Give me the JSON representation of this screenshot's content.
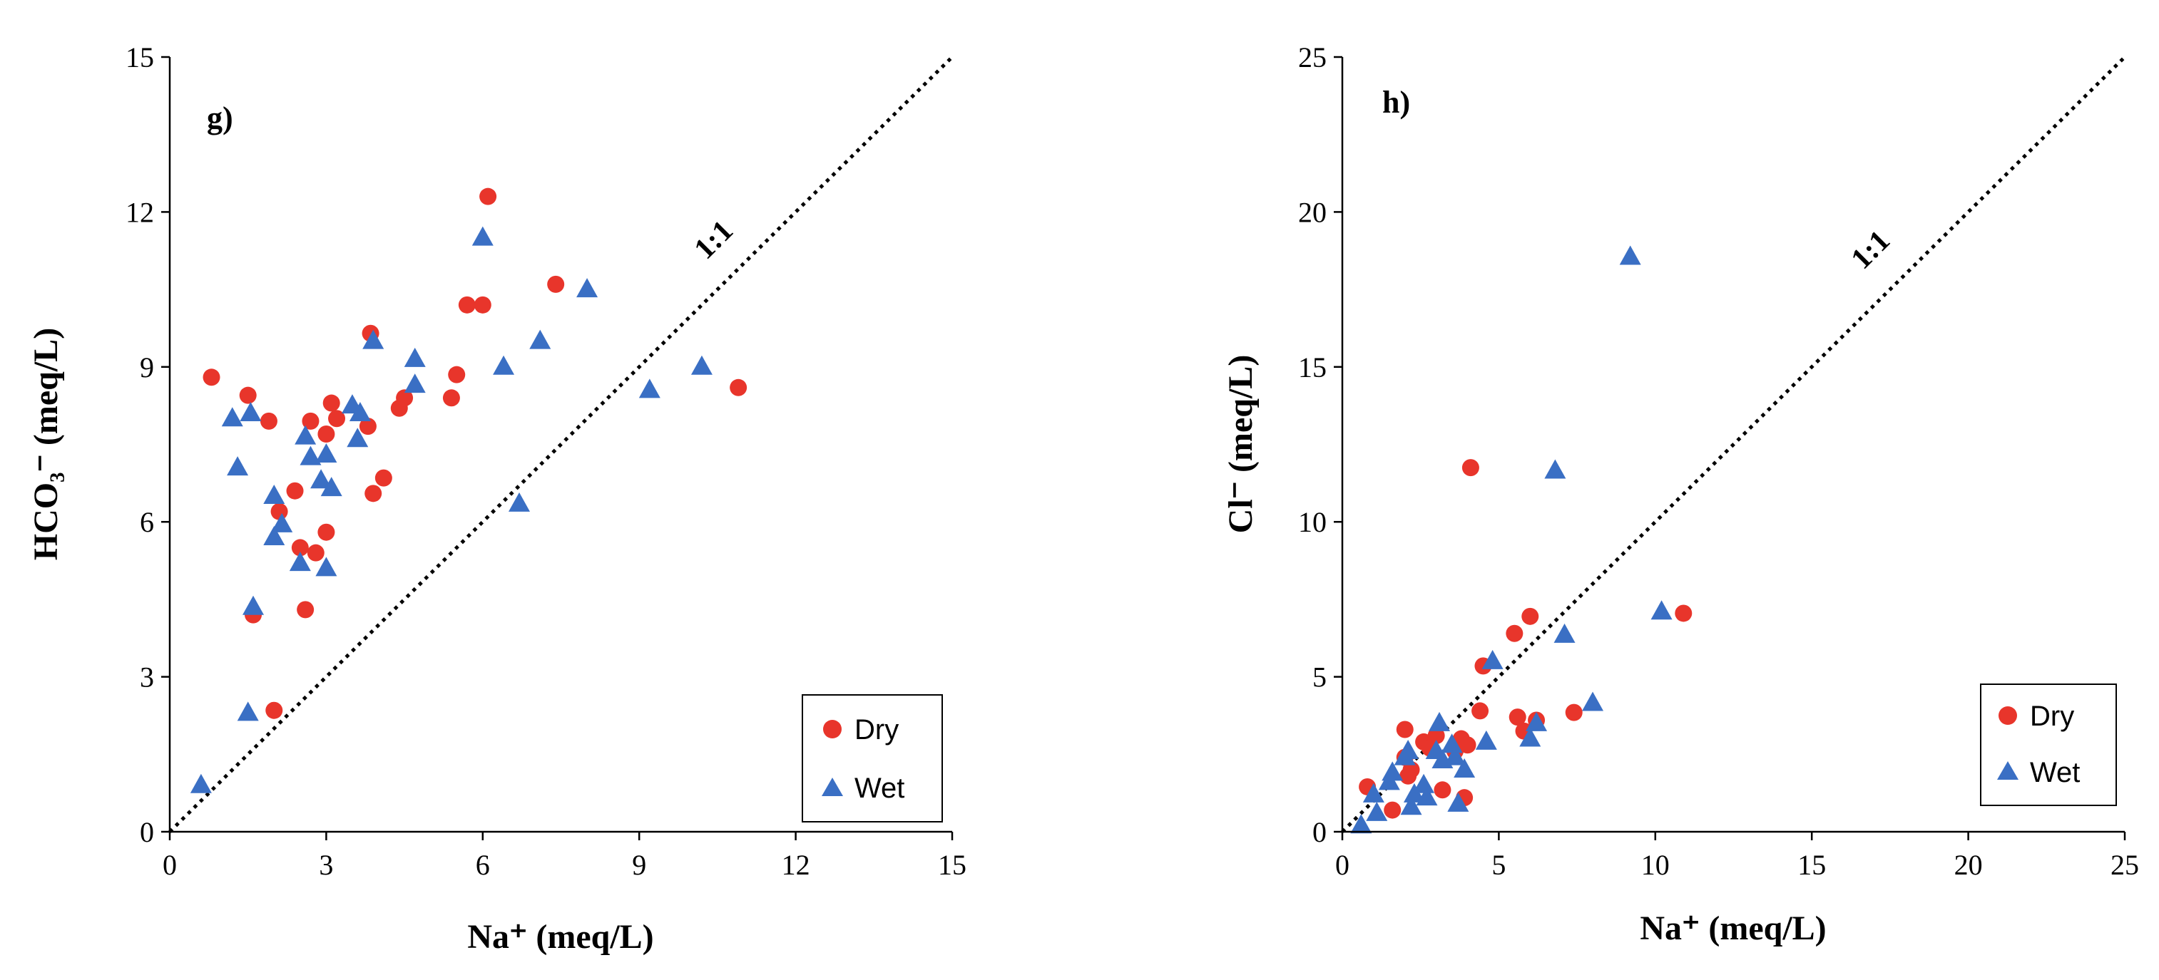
{
  "chart_data": [
    {
      "type": "scatter",
      "panel_label": "g)",
      "xlabel": "Na⁺ (meq/L)",
      "ylabel": "HCO₃⁻ (meq/L)",
      "xlim": [
        0,
        15
      ],
      "ylim": [
        0,
        15
      ],
      "xticks": [
        0,
        3,
        6,
        9,
        12,
        15
      ],
      "yticks": [
        0,
        3,
        6,
        9,
        12,
        15
      ],
      "reference_line": {
        "label": "1:1",
        "style": "dotted"
      },
      "legend": {
        "placement": "bottom-right"
      },
      "grid": false,
      "series": [
        {
          "name": "Dry",
          "marker": "circle",
          "color": "#e8352b",
          "points": [
            [
              0.8,
              8.8
            ],
            [
              1.5,
              8.45
            ],
            [
              1.9,
              7.95
            ],
            [
              1.6,
              4.2
            ],
            [
              2.0,
              2.35
            ],
            [
              2.1,
              6.2
            ],
            [
              2.4,
              6.6
            ],
            [
              2.5,
              5.5
            ],
            [
              2.6,
              4.3
            ],
            [
              2.7,
              7.95
            ],
            [
              2.8,
              5.4
            ],
            [
              3.0,
              5.8
            ],
            [
              3.0,
              7.7
            ],
            [
              3.1,
              8.3
            ],
            [
              3.2,
              8.0
            ],
            [
              3.8,
              7.85
            ],
            [
              3.85,
              9.65
            ],
            [
              3.9,
              6.55
            ],
            [
              4.1,
              6.85
            ],
            [
              4.4,
              8.2
            ],
            [
              4.5,
              8.4
            ],
            [
              5.4,
              8.4
            ],
            [
              5.5,
              8.85
            ],
            [
              5.7,
              10.2
            ],
            [
              6.0,
              10.2
            ],
            [
              6.1,
              12.3
            ],
            [
              7.4,
              10.6
            ],
            [
              10.9,
              8.6
            ]
          ]
        },
        {
          "name": "Wet",
          "marker": "triangle",
          "color": "#3a6fc4",
          "points": [
            [
              0.6,
              0.9
            ],
            [
              1.2,
              8.0
            ],
            [
              1.3,
              7.05
            ],
            [
              1.5,
              2.3
            ],
            [
              1.55,
              8.1
            ],
            [
              1.6,
              4.35
            ],
            [
              2.0,
              6.5
            ],
            [
              2.0,
              5.7
            ],
            [
              2.15,
              5.95
            ],
            [
              2.5,
              5.2
            ],
            [
              2.6,
              7.65
            ],
            [
              2.7,
              7.25
            ],
            [
              2.9,
              6.8
            ],
            [
              3.0,
              5.1
            ],
            [
              3.0,
              7.3
            ],
            [
              3.1,
              6.65
            ],
            [
              3.5,
              8.25
            ],
            [
              3.6,
              7.6
            ],
            [
              3.65,
              8.1
            ],
            [
              3.9,
              9.5
            ],
            [
              4.7,
              9.15
            ],
            [
              4.7,
              8.65
            ],
            [
              6.0,
              11.5
            ],
            [
              6.4,
              9.0
            ],
            [
              6.7,
              6.35
            ],
            [
              7.1,
              9.5
            ],
            [
              8.0,
              10.5
            ],
            [
              9.2,
              8.55
            ],
            [
              10.2,
              9.0
            ]
          ]
        }
      ]
    },
    {
      "type": "scatter",
      "panel_label": "h)",
      "xlabel": "Na⁺ (meq/L)",
      "ylabel": "Cl⁻ (meq/L)",
      "xlim": [
        0,
        25
      ],
      "ylim": [
        0,
        25
      ],
      "xticks": [
        0,
        5,
        10,
        15,
        20,
        25
      ],
      "yticks": [
        0,
        5,
        10,
        15,
        20,
        25
      ],
      "reference_line": {
        "label": "1:1",
        "style": "dotted"
      },
      "legend": {
        "placement": "bottom-right"
      },
      "grid": false,
      "series": [
        {
          "name": "Dry",
          "marker": "circle",
          "color": "#e8352b",
          "points": [
            [
              0.8,
              1.45
            ],
            [
              1.6,
              0.7
            ],
            [
              2.0,
              3.3
            ],
            [
              2.0,
              2.4
            ],
            [
              2.1,
              1.8
            ],
            [
              2.2,
              2.0
            ],
            [
              2.6,
              2.9
            ],
            [
              2.8,
              2.7
            ],
            [
              3.0,
              3.1
            ],
            [
              3.2,
              1.35
            ],
            [
              3.6,
              2.6
            ],
            [
              3.8,
              3.0
            ],
            [
              3.9,
              1.1
            ],
            [
              4.0,
              2.8
            ],
            [
              4.1,
              11.75
            ],
            [
              4.4,
              3.9
            ],
            [
              4.5,
              5.35
            ],
            [
              5.5,
              6.4
            ],
            [
              5.6,
              3.7
            ],
            [
              5.8,
              3.25
            ],
            [
              6.0,
              6.95
            ],
            [
              6.2,
              3.6
            ],
            [
              7.4,
              3.85
            ],
            [
              10.9,
              7.05
            ]
          ]
        },
        {
          "name": "Wet",
          "marker": "triangle",
          "color": "#3a6fc4",
          "points": [
            [
              0.6,
              0.2
            ],
            [
              1.0,
              1.2
            ],
            [
              1.1,
              0.6
            ],
            [
              1.5,
              1.6
            ],
            [
              1.6,
              1.9
            ],
            [
              2.0,
              2.4
            ],
            [
              2.1,
              2.6
            ],
            [
              2.2,
              0.8
            ],
            [
              2.3,
              1.2
            ],
            [
              2.6,
              1.5
            ],
            [
              2.7,
              1.1
            ],
            [
              3.0,
              2.6
            ],
            [
              3.1,
              3.5
            ],
            [
              3.2,
              2.3
            ],
            [
              3.5,
              2.8
            ],
            [
              3.6,
              2.4
            ],
            [
              3.7,
              0.9
            ],
            [
              3.9,
              2.0
            ],
            [
              4.6,
              2.9
            ],
            [
              4.8,
              5.5
            ],
            [
              6.0,
              3.0
            ],
            [
              6.2,
              3.5
            ],
            [
              6.8,
              11.65
            ],
            [
              7.1,
              6.35
            ],
            [
              8.0,
              4.15
            ],
            [
              9.2,
              18.55
            ],
            [
              10.2,
              7.1
            ]
          ]
        }
      ]
    }
  ]
}
